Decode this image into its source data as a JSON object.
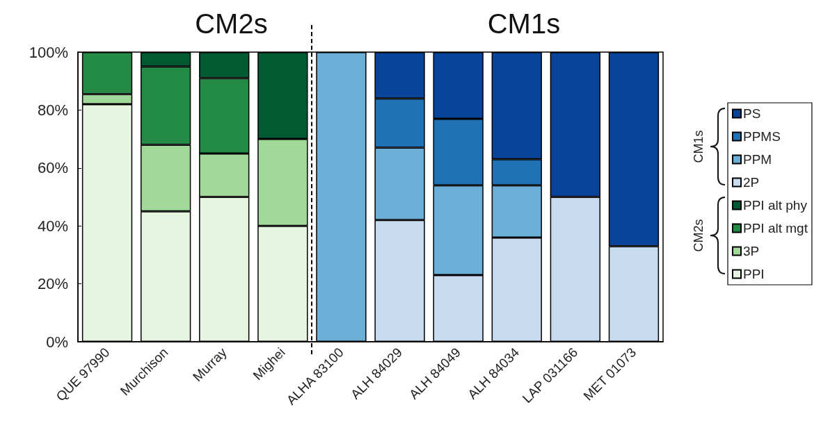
{
  "chart_data": {
    "type": "bar",
    "stacked": true,
    "categories": [
      "QUE 97990",
      "Murchison",
      "Murray",
      "Mighei",
      "ALHA 83100",
      "ALH 84029",
      "ALH 84049",
      "ALH 84034",
      "LAP 031166",
      "MET 01073"
    ],
    "series": [
      {
        "name": "PPI",
        "color": "#e5f5e0",
        "values": [
          82,
          45,
          50,
          40,
          null,
          null,
          null,
          null,
          null,
          null
        ]
      },
      {
        "name": "3P",
        "color": "#a1d99b",
        "values": [
          3.5,
          23,
          15,
          30,
          null,
          null,
          null,
          null,
          null,
          null
        ]
      },
      {
        "name": "PPI alt mgt",
        "color": "#238b45",
        "values": [
          14.5,
          27,
          26,
          null,
          null,
          null,
          null,
          null,
          null,
          null
        ]
      },
      {
        "name": "PPI alt phy",
        "color": "#005a32",
        "values": [
          null,
          5,
          9,
          30,
          null,
          null,
          null,
          null,
          null,
          null
        ]
      },
      {
        "name": "2P",
        "color": "#c6dbef",
        "values": [
          null,
          null,
          null,
          null,
          null,
          42,
          23,
          36,
          50,
          33
        ]
      },
      {
        "name": "PPM",
        "color": "#6baed6",
        "values": [
          null,
          null,
          null,
          null,
          100,
          25,
          31,
          18,
          null,
          null
        ]
      },
      {
        "name": "PPMS",
        "color": "#2171b5",
        "values": [
          null,
          null,
          null,
          null,
          null,
          17,
          23,
          9,
          null,
          null
        ]
      },
      {
        "name": "PS",
        "color": "#08449a",
        "values": [
          null,
          null,
          null,
          null,
          null,
          16,
          23,
          37,
          50,
          67
        ]
      }
    ],
    "ylim": [
      0,
      100
    ],
    "yticks": [
      {
        "value": 0,
        "label": "0%"
      },
      {
        "value": 20,
        "label": "20%"
      },
      {
        "value": 40,
        "label": "40%"
      },
      {
        "value": 60,
        "label": "60%"
      },
      {
        "value": 80,
        "label": "80%"
      },
      {
        "value": 100,
        "label": "100%"
      }
    ],
    "annotations": [
      "CM2s",
      "CM1s",
      "CM1s",
      "CM2s"
    ],
    "grid": false,
    "legend": "right"
  }
}
